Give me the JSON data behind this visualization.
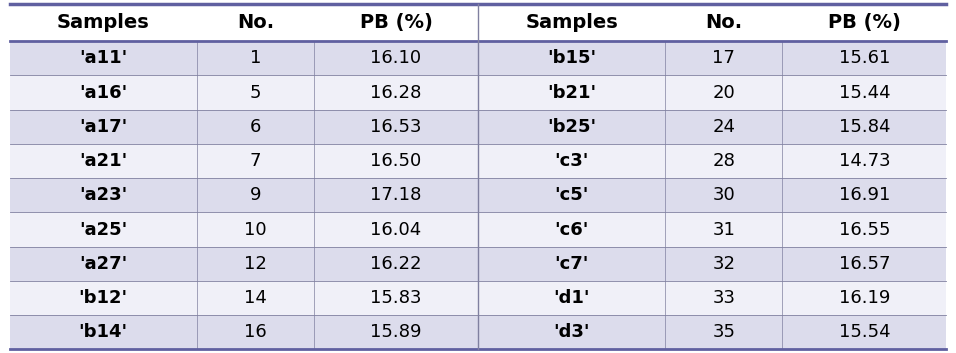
{
  "columns": [
    "Samples",
    "No.",
    "PB (%)",
    "Samples",
    "No.",
    "PB (%)"
  ],
  "rows": [
    [
      "'a11'",
      "1",
      "16.10",
      "'b15'",
      "17",
      "15.61"
    ],
    [
      "'a16'",
      "5",
      "16.28",
      "'b21'",
      "20",
      "15.44"
    ],
    [
      "'a17'",
      "6",
      "16.53",
      "'b25'",
      "24",
      "15.84"
    ],
    [
      "'a21'",
      "7",
      "16.50",
      "'c3'",
      "28",
      "14.73"
    ],
    [
      "'a23'",
      "9",
      "17.18",
      "'c5'",
      "30",
      "16.91"
    ],
    [
      "'a25'",
      "10",
      "16.04",
      "'c6'",
      "31",
      "16.55"
    ],
    [
      "'a27'",
      "12",
      "16.22",
      "'c7'",
      "32",
      "16.57"
    ],
    [
      "'b12'",
      "14",
      "15.83",
      "'d1'",
      "33",
      "16.19"
    ],
    [
      "'b14'",
      "16",
      "15.89",
      "'d3'",
      "35",
      "15.54"
    ]
  ],
  "header_bg": "#ffffff",
  "row_bg_odd": "#dcdcec",
  "row_bg_even": "#f0f0f8",
  "fig_bg": "#ffffff",
  "header_text_color": "#000000",
  "row_text_color": "#000000",
  "bold_samples_left": [
    "'a11'",
    "'a16'",
    "'a17'",
    "'a21'",
    "'a23'",
    "'a25'",
    "'a27'",
    "'b12'",
    "'b14'"
  ],
  "bold_samples_right": [
    "'b15'",
    "'b21'",
    "'b25'",
    "'c3'",
    "'c5'",
    "'c6'",
    "'c7'",
    "'d1'",
    "'d3'"
  ],
  "col_widths_rel": [
    1.6,
    1.0,
    1.4,
    1.6,
    1.0,
    1.4
  ],
  "figsize": [
    9.56,
    3.53
  ],
  "dpi": 100,
  "border_color": "#8080a0",
  "header_border_color": "#6060a0",
  "font_size_header": 14,
  "font_size_data": 13
}
